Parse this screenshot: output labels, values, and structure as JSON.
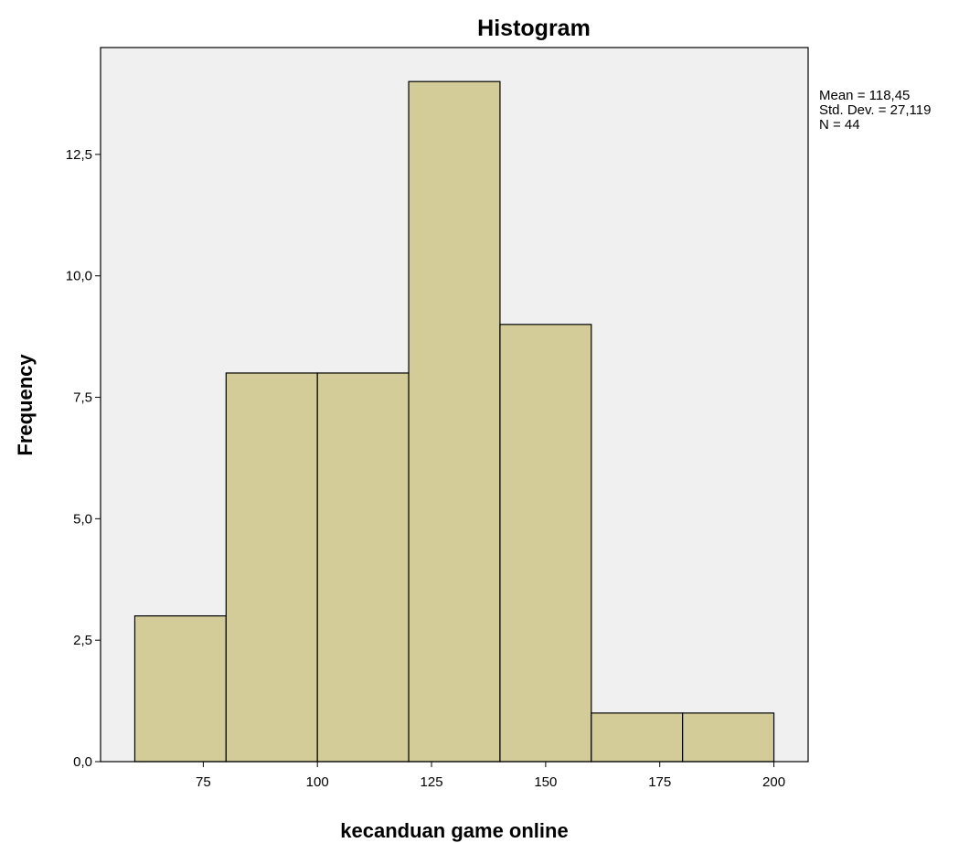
{
  "chart_data": {
    "type": "bar",
    "title": "Histogram",
    "xlabel": "kecanduan game online",
    "ylabel": "Frequency",
    "bins": [
      {
        "from": 60,
        "to": 80,
        "value": 3
      },
      {
        "from": 80,
        "to": 100,
        "value": 8
      },
      {
        "from": 100,
        "to": 120,
        "value": 8
      },
      {
        "from": 120,
        "to": 140,
        "value": 14
      },
      {
        "from": 140,
        "to": 160,
        "value": 9
      },
      {
        "from": 160,
        "to": 180,
        "value": 1
      },
      {
        "from": 180,
        "to": 200,
        "value": 1
      }
    ],
    "xlim": [
      52.5,
      207.5
    ],
    "ylim": [
      0,
      14.7
    ],
    "x_ticks": [
      75,
      100,
      125,
      150,
      175,
      200
    ],
    "x_tick_labels": [
      "75",
      "100",
      "125",
      "150",
      "175",
      "200"
    ],
    "y_ticks": [
      0,
      2.5,
      5,
      7.5,
      10,
      12.5
    ],
    "y_tick_labels": [
      "0,0",
      "2,5",
      "5,0",
      "7,5",
      "10,0",
      "12,5"
    ],
    "grid": false,
    "legend": "none",
    "stats": [
      "Mean = 118,45",
      "Std. Dev. = 27,119",
      "N = 44"
    ],
    "colors": {
      "bar_fill": "#d3cc98",
      "bar_stroke": "#000000",
      "plot_background": "#f0f0f0",
      "frame": "#000000"
    }
  }
}
